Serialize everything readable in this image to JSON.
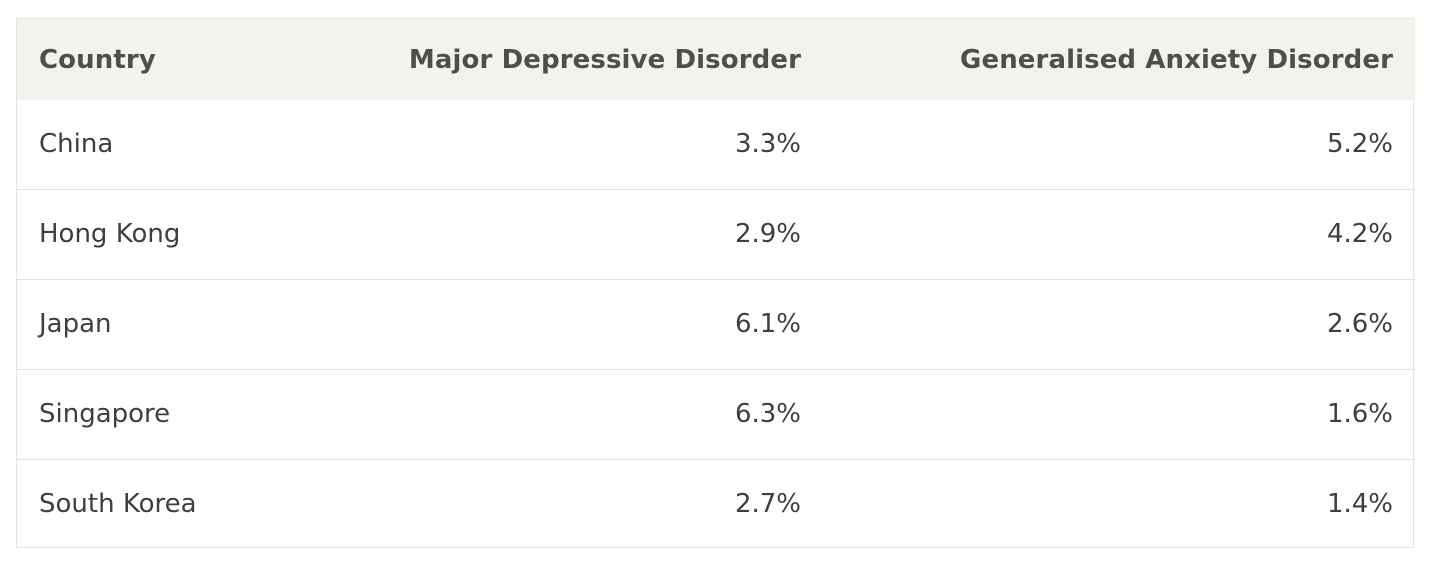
{
  "table": {
    "headers": [
      "Country",
      "Major Depressive Disorder",
      "Generalised Anxiety Disorder"
    ],
    "rows": [
      [
        "China",
        "3.3%",
        "5.2%"
      ],
      [
        "Hong Kong",
        "2.9%",
        "4.2%"
      ],
      [
        "Japan",
        "6.1%",
        "2.6%"
      ],
      [
        "Singapore",
        "6.3%",
        "1.6%"
      ],
      [
        "South Korea",
        "2.7%",
        "1.4%"
      ]
    ]
  },
  "colors": {
    "header_bg": "#f4f2ec",
    "border": "#e6e3dc",
    "text": "#3f3f3f"
  }
}
